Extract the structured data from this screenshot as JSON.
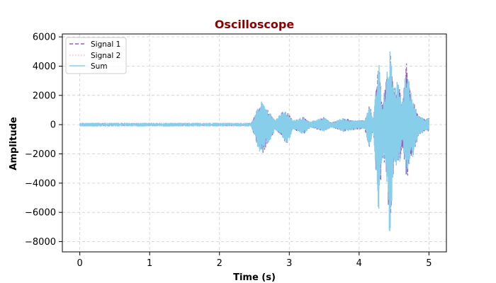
{
  "chart_data": {
    "type": "line",
    "title": "Oscilloscope",
    "xlabel": "Time (s)",
    "ylabel": "Amplitude",
    "xlim": [
      -0.25,
      5.25
    ],
    "ylim": [
      -8700,
      6200
    ],
    "x_ticks": [
      0,
      1,
      2,
      3,
      4,
      5
    ],
    "y_ticks": [
      -8000,
      -6000,
      -4000,
      -2000,
      0,
      2000,
      4000,
      6000
    ],
    "x_tick_labels": [
      "0",
      "1",
      "2",
      "3",
      "4",
      "5"
    ],
    "y_tick_labels": [
      "−8000",
      "−6000",
      "−4000",
      "−2000",
      "0",
      "2000",
      "4000",
      "6000"
    ],
    "grid": true,
    "legend_position": "top-left",
    "series": [
      {
        "name": "Signal 1",
        "color": "#9b59b6",
        "style": "dashed",
        "envelope": [
          {
            "x": 0.0,
            "lo": -30,
            "hi": 30
          },
          {
            "x": 2.45,
            "lo": -30,
            "hi": 30
          },
          {
            "x": 2.55,
            "lo": -1600,
            "hi": 1200
          },
          {
            "x": 2.6,
            "lo": -2200,
            "hi": 1600
          },
          {
            "x": 2.7,
            "lo": -1300,
            "hi": 1000
          },
          {
            "x": 2.8,
            "lo": -400,
            "hi": 300
          },
          {
            "x": 2.9,
            "lo": -900,
            "hi": 900
          },
          {
            "x": 2.97,
            "lo": -1500,
            "hi": 900
          },
          {
            "x": 3.05,
            "lo": -300,
            "hi": 300
          },
          {
            "x": 3.2,
            "lo": -700,
            "hi": 550
          },
          {
            "x": 3.3,
            "lo": -200,
            "hi": 200
          },
          {
            "x": 3.5,
            "lo": -500,
            "hi": 550
          },
          {
            "x": 3.6,
            "lo": -200,
            "hi": 150
          },
          {
            "x": 3.78,
            "lo": -500,
            "hi": 500
          },
          {
            "x": 3.9,
            "lo": -400,
            "hi": 300
          },
          {
            "x": 4.08,
            "lo": -300,
            "hi": 300
          },
          {
            "x": 4.15,
            "lo": -1800,
            "hi": 1400
          },
          {
            "x": 4.2,
            "lo": -400,
            "hi": 300
          },
          {
            "x": 4.28,
            "lo": -6100,
            "hi": 4500
          },
          {
            "x": 4.33,
            "lo": -2500,
            "hi": 1500
          },
          {
            "x": 4.38,
            "lo": -2800,
            "hi": 2800
          },
          {
            "x": 4.44,
            "lo": -8000,
            "hi": 5500
          },
          {
            "x": 4.5,
            "lo": -2500,
            "hi": 2500
          },
          {
            "x": 4.56,
            "lo": -3200,
            "hi": 3100
          },
          {
            "x": 4.62,
            "lo": -1500,
            "hi": 1500
          },
          {
            "x": 4.68,
            "lo": -3900,
            "hi": 4300
          },
          {
            "x": 4.75,
            "lo": -2500,
            "hi": 2000
          },
          {
            "x": 4.85,
            "lo": -900,
            "hi": 600
          },
          {
            "x": 4.95,
            "lo": -400,
            "hi": 400
          },
          {
            "x": 5.0,
            "lo": -500,
            "hi": 500
          }
        ]
      },
      {
        "name": "Signal 2",
        "color": "#ffb6c1",
        "style": "dotted",
        "envelope": [
          {
            "x": 0.0,
            "lo": -20,
            "hi": 20
          },
          {
            "x": 5.0,
            "lo": -20,
            "hi": 20
          }
        ]
      },
      {
        "name": "Sum",
        "color": "#87ceeb",
        "style": "solid",
        "envelope": [
          {
            "x": 0.0,
            "lo": -40,
            "hi": 40
          },
          {
            "x": 2.45,
            "lo": -40,
            "hi": 40
          },
          {
            "x": 2.55,
            "lo": -1600,
            "hi": 1200
          },
          {
            "x": 2.6,
            "lo": -2200,
            "hi": 1600
          },
          {
            "x": 2.7,
            "lo": -1300,
            "hi": 1000
          },
          {
            "x": 2.8,
            "lo": -400,
            "hi": 300
          },
          {
            "x": 2.9,
            "lo": -900,
            "hi": 900
          },
          {
            "x": 2.97,
            "lo": -1500,
            "hi": 900
          },
          {
            "x": 3.05,
            "lo": -300,
            "hi": 300
          },
          {
            "x": 3.2,
            "lo": -700,
            "hi": 550
          },
          {
            "x": 3.3,
            "lo": -200,
            "hi": 200
          },
          {
            "x": 3.5,
            "lo": -500,
            "hi": 550
          },
          {
            "x": 3.6,
            "lo": -200,
            "hi": 150
          },
          {
            "x": 3.78,
            "lo": -500,
            "hi": 500
          },
          {
            "x": 3.9,
            "lo": -400,
            "hi": 300
          },
          {
            "x": 4.08,
            "lo": -300,
            "hi": 300
          },
          {
            "x": 4.15,
            "lo": -1800,
            "hi": 1400
          },
          {
            "x": 4.2,
            "lo": -400,
            "hi": 300
          },
          {
            "x": 4.28,
            "lo": -6100,
            "hi": 4500
          },
          {
            "x": 4.33,
            "lo": -2500,
            "hi": 1500
          },
          {
            "x": 4.38,
            "lo": -2800,
            "hi": 2800
          },
          {
            "x": 4.44,
            "lo": -8000,
            "hi": 5500
          },
          {
            "x": 4.5,
            "lo": -2500,
            "hi": 2500
          },
          {
            "x": 4.56,
            "lo": -3200,
            "hi": 3100
          },
          {
            "x": 4.62,
            "lo": -1500,
            "hi": 1500
          },
          {
            "x": 4.68,
            "lo": -3900,
            "hi": 4300
          },
          {
            "x": 4.75,
            "lo": -2500,
            "hi": 2000
          },
          {
            "x": 4.85,
            "lo": -900,
            "hi": 600
          },
          {
            "x": 4.95,
            "lo": -400,
            "hi": 400
          },
          {
            "x": 5.0,
            "lo": -500,
            "hi": 500
          }
        ]
      }
    ]
  },
  "colors": {
    "title": "#8b0000",
    "grid": "#cccccc",
    "axes": "#000000"
  }
}
